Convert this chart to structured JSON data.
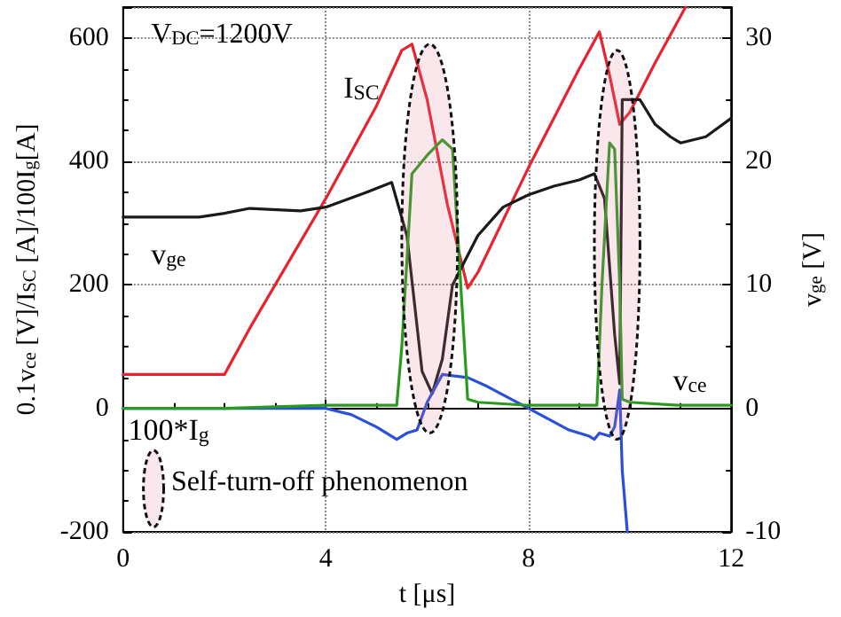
{
  "chart_data": {
    "type": "line",
    "xlabel": "t [μs]",
    "ylabel": "0.1v$_{ce}$ [V]/I$_{SC}$ [A]/100I$_{g}$[A]",
    "y2label": "v$_{ge}$ [V]",
    "xlim": [
      0,
      12
    ],
    "xticks": [
      0,
      4,
      8,
      12
    ],
    "ylim": [
      -200,
      650
    ],
    "yticks": [
      -200,
      0,
      200,
      400,
      600
    ],
    "y2lim": [
      -10,
      32.5
    ],
    "y2ticks": [
      -10,
      0,
      10,
      20,
      30
    ],
    "grid": true,
    "marker": "none",
    "annotations": [
      "V$_{DC}$=1200V",
      "Self-turn-off phenomenon"
    ],
    "series": [
      {
        "name": "I$_{SC}$",
        "color": "#e8232e",
        "x": [
          0,
          1,
          2,
          2.5,
          3,
          4,
          5,
          5.5,
          5.7,
          6.0,
          6.4,
          6.8,
          7.0,
          8,
          9,
          9.4,
          9.6,
          9.8,
          10,
          10.5,
          11.1
        ],
        "values": [
          55,
          55,
          55,
          130,
          200,
          340,
          490,
          580,
          590,
          500,
          330,
          195,
          220,
          390,
          550,
          610,
          540,
          460,
          480,
          560,
          650
        ]
      },
      {
        "name": "v$_{ge}$",
        "color": "#1a1a1a",
        "axis": "y2",
        "x": [
          0,
          1.5,
          2,
          2.5,
          3.5,
          4,
          4.8,
          5.3,
          5.6,
          5.9,
          6.1,
          6.3,
          6.5,
          7,
          7.5,
          8,
          8.5,
          9.0,
          9.3,
          9.5,
          9.7,
          9.8,
          9.85,
          10.2,
          10.5,
          10.8,
          11,
          11.5,
          12
        ],
        "values": [
          15.5,
          15.5,
          15.8,
          16.2,
          16,
          16.3,
          17.5,
          18.3,
          14,
          3,
          1.2,
          4,
          10,
          14,
          16.3,
          17.3,
          18,
          18.5,
          19,
          17,
          6,
          2,
          25,
          25,
          23,
          22,
          21.5,
          22,
          23.5
        ]
      },
      {
        "name": "100*I$_{g}$",
        "color": "#2a4fd8",
        "x": [
          0,
          4,
          4.5,
          5,
          5.4,
          5.6,
          5.8,
          6,
          6.3,
          6.8,
          7.2,
          8,
          8.8,
          9.2,
          9.3,
          9.4,
          9.6,
          9.7,
          9.8,
          9.85,
          9.95
        ],
        "values": [
          0,
          0,
          -10,
          -30,
          -50,
          -40,
          -35,
          10,
          55,
          50,
          35,
          0,
          -35,
          -45,
          -50,
          -40,
          -45,
          -30,
          30,
          -100,
          -200
        ]
      },
      {
        "name": "v$_{ce}$",
        "color": "#2a9a1e",
        "x": [
          0,
          2,
          4,
          5.4,
          5.5,
          5.7,
          6.0,
          6.3,
          6.5,
          6.7,
          6.8,
          7,
          8,
          9,
          9.35,
          9.45,
          9.6,
          9.7,
          9.8,
          9.85,
          10,
          11,
          12
        ],
        "values": [
          0,
          0,
          5,
          5,
          100,
          380,
          410,
          435,
          420,
          150,
          15,
          10,
          5,
          5,
          5,
          200,
          430,
          420,
          200,
          15,
          10,
          5,
          5
        ]
      }
    ]
  }
}
